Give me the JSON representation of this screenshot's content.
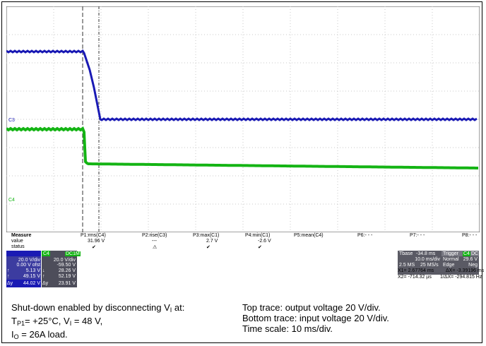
{
  "channel_markers": {
    "c3": "C3",
    "c4": "C4"
  },
  "colors": {
    "output_trace": "#1a1ab4",
    "input_trace": "#14b414",
    "grid": "#c8c8c8",
    "frame": "#000000"
  },
  "measure": {
    "header": "Measure",
    "row_labels": [
      "value",
      "status"
    ],
    "columns": [
      {
        "label": "P1:rms(C4)",
        "value": "31.96 V",
        "status": "✔"
      },
      {
        "label": "P2:rise(C3)",
        "value": "---",
        "status": "⚠"
      },
      {
        "label": "P3:max(C1)",
        "value": "2.7 V",
        "status": "✔"
      },
      {
        "label": "P4:min(C1)",
        "value": "-2.6 V",
        "status": "✔"
      },
      {
        "label": "P5:mean(C4)",
        "value": "",
        "status": ""
      },
      {
        "label": "P6:- - -",
        "value": "",
        "status": ""
      },
      {
        "label": "P7:- - -",
        "value": "",
        "status": ""
      },
      {
        "label": "P8:- - -",
        "value": "",
        "status": ""
      }
    ]
  },
  "channel_panel": {
    "c3_scale": "20.0 V/div",
    "c3_offset": "0.00 V ofst",
    "c4_label": "C4",
    "c4_coupling": "DC1M",
    "c4_scale": "20.0 V/div",
    "c4_offset": "-59.50 V",
    "rows": [
      {
        "left": "5.13 V",
        "right": "28.26 V"
      },
      {
        "left": "49.15 V",
        "right": "52.19 V"
      },
      {
        "label": "Δy",
        "left": "44.02 V",
        "right": "23.91 V"
      }
    ]
  },
  "timebase": {
    "tbase_label": "Tbase",
    "tbase_value": "-34.8 ms",
    "trigger_label": "Trigger",
    "trigger_ch": "C4",
    "trigger_coupling": "DC",
    "div": "10.0 ms/div",
    "mode": "Normal",
    "level": "29.6 V",
    "samples": "2.5 MS",
    "rate": "25 MS/s",
    "type": "Edge",
    "slope": "Neg"
  },
  "cursors": {
    "x1": "X1=  2.67764 ms",
    "dx": "ΔX=  -3.39196 ms",
    "x2": "X2=  -714.32 µs",
    "inv_dx": "1/ΔX=  -294.815 Hz"
  },
  "caption": {
    "left": {
      "line1_pre": "Shut-down enabled by disconnecting V",
      "line1_sub": "I",
      "line1_post": " at:",
      "line2_a": "T",
      "line2_a_sub": "P1",
      "line2_b": "= +25°C, V",
      "line2_b_sub": "I",
      "line2_c": " = 48 V,",
      "line3_a": "I",
      "line3_a_sub": "O",
      "line3_b": " = 26A load."
    },
    "right": {
      "line1": "Top trace: output voltage 20 V/div.",
      "line2": "Bottom trace: input voltage 20 V/div.",
      "line3": "Time scale: 10 ms/div."
    }
  }
}
